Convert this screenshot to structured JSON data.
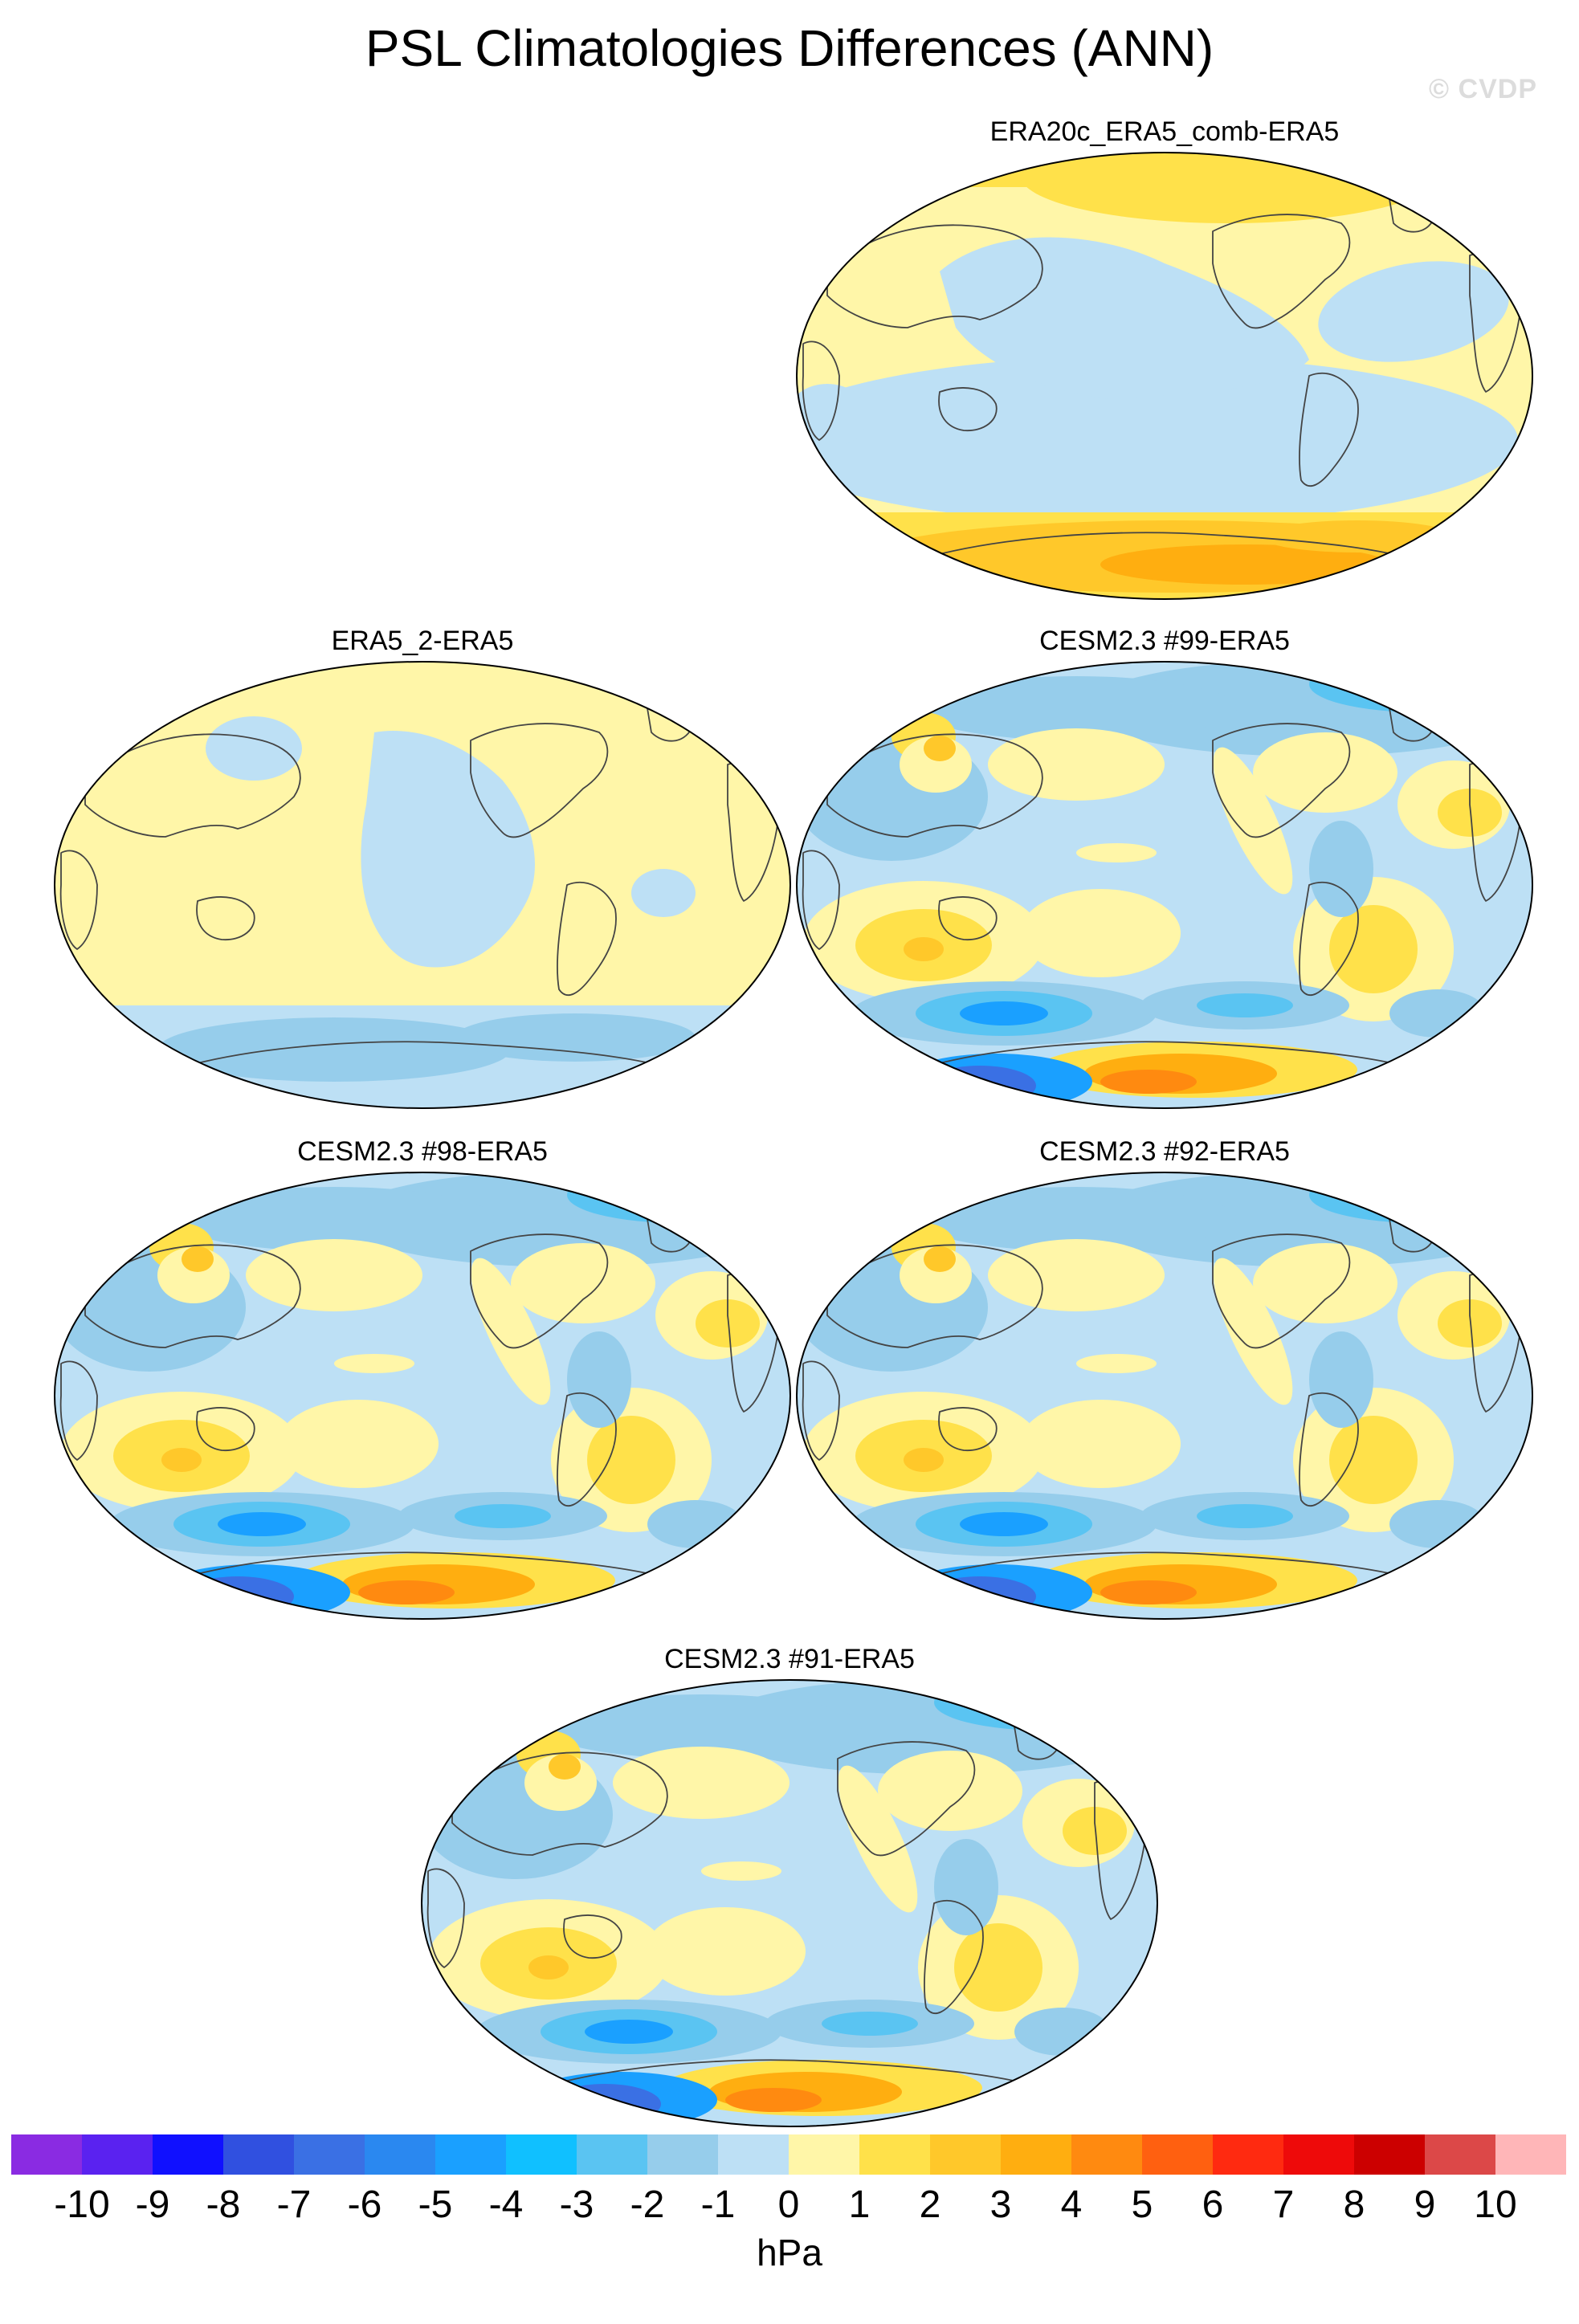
{
  "figure": {
    "title": "PSL Climatologies Differences (ANN)",
    "watermark": "© CVDP",
    "units": "hPa"
  },
  "colorbar": {
    "ticks": [
      "-10",
      "-9",
      "-8",
      "-7",
      "-6",
      "-5",
      "-4",
      "-3",
      "-2",
      "-1",
      "0",
      "1",
      "2",
      "3",
      "4",
      "5",
      "6",
      "7",
      "8",
      "9",
      "10"
    ],
    "colors": [
      "#8a2be2",
      "#5a22f0",
      "#1010ff",
      "#3050e0",
      "#3a70e4",
      "#2a88f0",
      "#1aa0ff",
      "#10c0ff",
      "#5ac4f2",
      "#96cdeb",
      "#bde0f5",
      "#fff6a8",
      "#ffe14a",
      "#ffc82a",
      "#ffae10",
      "#ff8a10",
      "#ff6010",
      "#ff2a10",
      "#ee0a0a",
      "#cc0000",
      "#dc4848",
      "#ffb6b8"
    ]
  },
  "panels": [
    {
      "id": "era20c",
      "title": "ERA20c_ERA5_comb-ERA5",
      "style": "era20c"
    },
    {
      "id": "era5-2",
      "title": "ERA5_2-ERA5",
      "style": "era52"
    },
    {
      "id": "cesm99",
      "title": "CESM2.3 #99-ERA5",
      "style": "cesm"
    },
    {
      "id": "cesm98",
      "title": "CESM2.3 #98-ERA5",
      "style": "cesm"
    },
    {
      "id": "cesm92",
      "title": "CESM2.3 #92-ERA5",
      "style": "cesm"
    },
    {
      "id": "cesm91",
      "title": "CESM2.3 #91-ERA5",
      "style": "cesm"
    }
  ]
}
